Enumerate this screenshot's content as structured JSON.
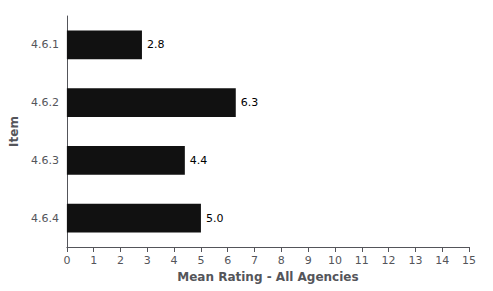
{
  "chart_data": {
    "type": "bar",
    "orientation": "horizontal",
    "categories": [
      "4.6.1",
      "4.6.2",
      "4.6.3",
      "4.6.4"
    ],
    "values": [
      2.8,
      6.3,
      4.4,
      5.0
    ],
    "value_labels": [
      "2.8",
      "6.3",
      "4.4",
      "5.0"
    ],
    "color": "#111111",
    "xlabel": "Mean Rating - All Agencies",
    "ylabel": "Item",
    "xlim": [
      0,
      15
    ],
    "xticks": [
      0,
      1,
      2,
      3,
      4,
      5,
      6,
      7,
      8,
      9,
      10,
      11,
      12,
      13,
      14,
      15
    ],
    "grid": false,
    "data_labels": true
  }
}
